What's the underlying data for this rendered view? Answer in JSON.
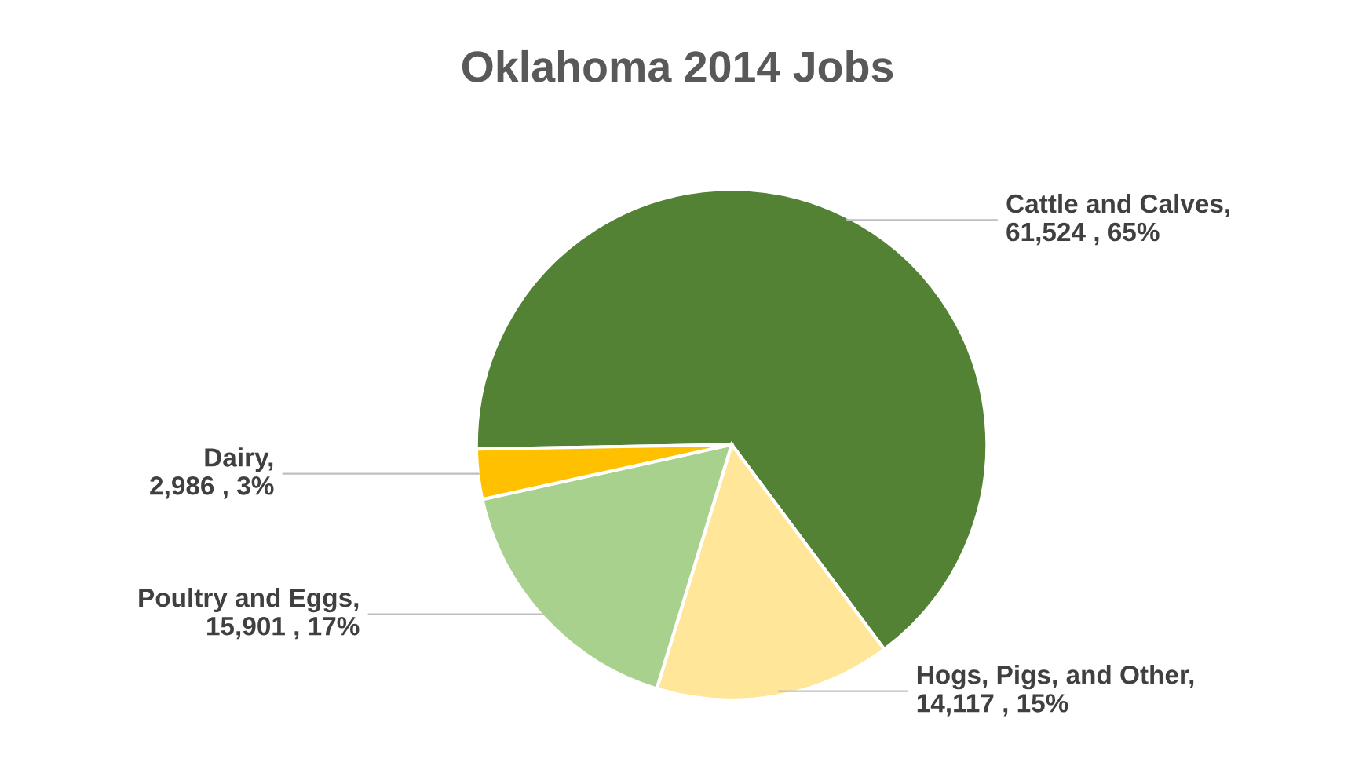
{
  "chart_data": {
    "type": "pie",
    "title": "Oklahoma 2014 Jobs",
    "categories": [
      "Cattle and Calves",
      "Hogs, Pigs, and Other",
      "Poultry and Eggs",
      "Dairy"
    ],
    "values": [
      61524,
      14117,
      15901,
      2986
    ],
    "value_labels": [
      ", 61,524 , 65%",
      ", 14,117 , 15%",
      ", 15,901 , 17%",
      ", 2,986 , 3%"
    ],
    "colors": [
      "#548235",
      "#ffe699",
      "#a9d18e",
      "#ffc000"
    ],
    "legend": false
  }
}
